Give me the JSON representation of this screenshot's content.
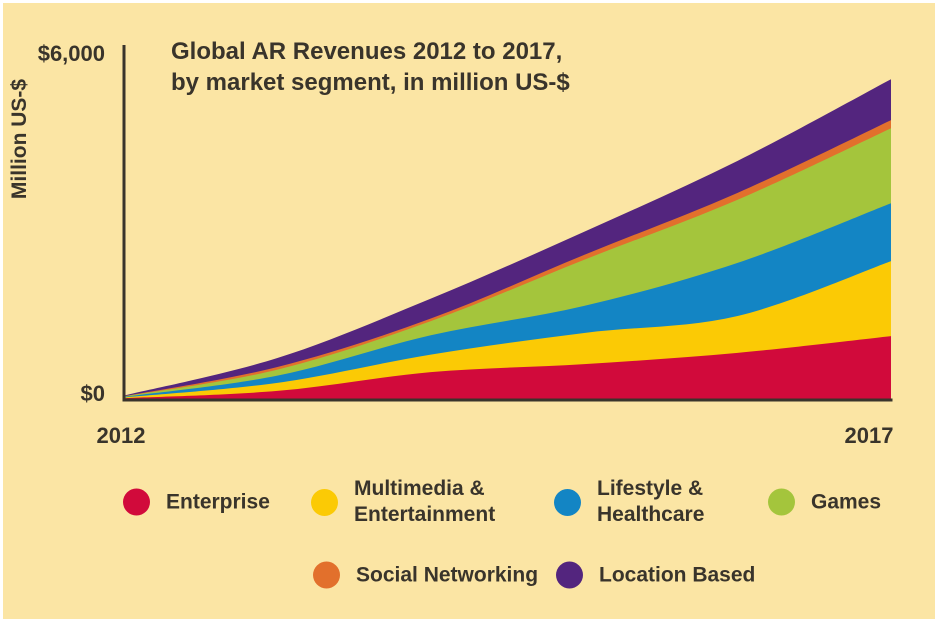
{
  "page": {
    "background": "#FBE5A4",
    "text_color": "#39342B"
  },
  "chart_data": {
    "type": "area",
    "stacked": true,
    "title": "Global AR Revenues 2012 to 2017,\nby market segment, in million US-$",
    "xlabel": "",
    "ylabel": "Million US-$",
    "ylim": [
      0,
      6000
    ],
    "grid": false,
    "legend_position": "bottom",
    "axis_color": "#39342B",
    "x": [
      "2012",
      "2013",
      "2014",
      "2015",
      "2016",
      "2017"
    ],
    "x_ticks": [
      {
        "label": "2012"
      },
      {
        "label": "2017"
      }
    ],
    "y_ticks": [
      {
        "label": "$0",
        "value": 0
      },
      {
        "label": "$6,000",
        "value": 6000
      }
    ],
    "series": [
      {
        "name": "Enterprise",
        "color": "#D10A3B",
        "values": [
          15,
          140,
          465,
          605,
          800,
          1090
        ]
      },
      {
        "name": "Multimedia &\nEntertainment",
        "color": "#FBCA05",
        "values": [
          12,
          140,
          305,
          540,
          640,
          1300
        ]
      },
      {
        "name": "Lifestyle &\nHealthcare",
        "color": "#1385C4",
        "values": [
          10,
          125,
          335,
          470,
          920,
          1005
        ]
      },
      {
        "name": "Games",
        "color": "#A4C53C",
        "values": [
          8,
          105,
          245,
          800,
          1095,
          1300
        ]
      },
      {
        "name": "Social Networking",
        "color": "#E2702C",
        "values": [
          3,
          45,
          45,
          85,
          120,
          140
        ]
      },
      {
        "name": "Location Based",
        "color": "#53257E",
        "values": [
          12,
          155,
          345,
          400,
          555,
          710
        ]
      }
    ],
    "totals_by_year": [
      60,
      710,
      1740,
      2900,
      4130,
      5545
    ]
  }
}
